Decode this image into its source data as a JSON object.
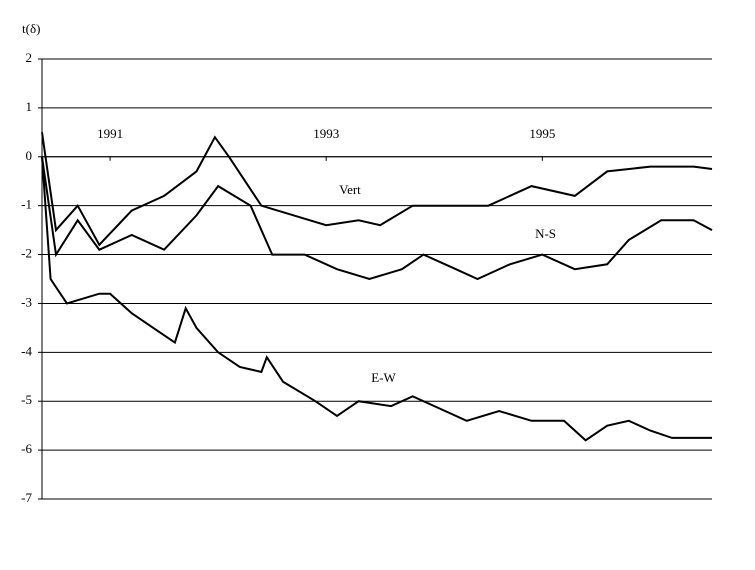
{
  "chart_data": {
    "type": "line",
    "ylabel": "t(δ)",
    "xlim": [
      1990.37,
      1996.57
    ],
    "xticks": [
      1991,
      1993,
      1995
    ],
    "ylim": [
      -7,
      2
    ],
    "yticks": [
      -7,
      -6,
      -5,
      -4,
      -3,
      -2,
      -1,
      0,
      1,
      2
    ],
    "grid": true,
    "series": [
      {
        "name": "Vert",
        "color": "#000000",
        "x": [
          1990.37,
          1990.5,
          1990.7,
          1990.9,
          1991.2,
          1991.5,
          1991.8,
          1991.97,
          1992.1,
          1992.4,
          1992.7,
          1993.0,
          1993.3,
          1993.5,
          1993.8,
          1994.2,
          1994.5,
          1994.9,
          1995.3,
          1995.6,
          1996.0,
          1996.4,
          1996.57
        ],
        "values": [
          0.5,
          -1.5,
          -1.0,
          -1.8,
          -1.1,
          -0.8,
          -0.3,
          0.4,
          0.0,
          -1.0,
          -1.2,
          -1.4,
          -1.3,
          -1.4,
          -1.0,
          -1.0,
          -1.0,
          -0.6,
          -0.8,
          -0.3,
          -0.2,
          -0.2,
          -0.25
        ]
      },
      {
        "name": "N-S",
        "color": "#000000",
        "x": [
          1990.37,
          1990.5,
          1990.7,
          1990.9,
          1991.2,
          1991.5,
          1991.8,
          1992.0,
          1992.3,
          1992.5,
          1992.8,
          1993.1,
          1993.4,
          1993.7,
          1993.9,
          1994.2,
          1994.4,
          1994.7,
          1995.0,
          1995.3,
          1995.6,
          1995.8,
          1996.1,
          1996.4,
          1996.57
        ],
        "values": [
          0,
          -2.0,
          -1.3,
          -1.9,
          -1.6,
          -1.9,
          -1.2,
          -0.6,
          -1.0,
          -2.0,
          -2.0,
          -2.3,
          -2.5,
          -2.3,
          -2.0,
          -2.3,
          -2.5,
          -2.2,
          -2.0,
          -2.3,
          -2.2,
          -1.7,
          -1.3,
          -1.3,
          -1.5
        ]
      },
      {
        "name": "E-W",
        "color": "#000000",
        "x": [
          1990.37,
          1990.45,
          1990.6,
          1990.9,
          1991.0,
          1991.2,
          1991.4,
          1991.6,
          1991.7,
          1991.8,
          1992.0,
          1992.2,
          1992.4,
          1992.45,
          1992.6,
          1992.9,
          1993.1,
          1993.3,
          1993.6,
          1993.8,
          1994.1,
          1994.3,
          1994.6,
          1994.9,
          1995.2,
          1995.4,
          1995.6,
          1995.8,
          1996.0,
          1996.2,
          1996.4,
          1996.57
        ],
        "values": [
          0,
          -2.5,
          -3.0,
          -2.8,
          -2.8,
          -3.2,
          -3.5,
          -3.8,
          -3.1,
          -3.5,
          -4.0,
          -4.3,
          -4.4,
          -4.1,
          -4.6,
          -5.0,
          -5.3,
          -5.0,
          -5.1,
          -4.9,
          -5.2,
          -5.4,
          -5.2,
          -5.4,
          -5.4,
          -5.8,
          -5.5,
          -5.4,
          -5.6,
          -5.75,
          -5.75,
          -5.75
        ]
      }
    ],
    "annotations": [
      {
        "text": "Vert",
        "x": 1993.22,
        "y": -0.7
      },
      {
        "text": "N-S",
        "x": 1995.03,
        "y": -1.6
      },
      {
        "text": "E-W",
        "x": 1993.53,
        "y": -4.55
      }
    ]
  }
}
